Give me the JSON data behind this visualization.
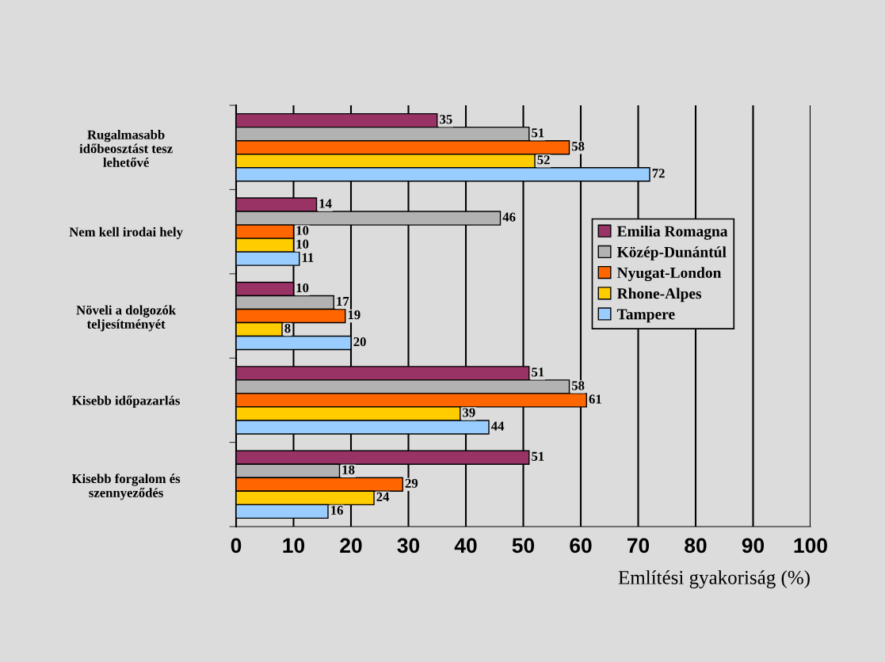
{
  "chart_data": {
    "type": "bar",
    "orientation": "horizontal",
    "xlabel": "Említési gyakoriság (%)",
    "categories": [
      "Rugalmasabb\nidőbeosztást tesz\nlehetővé",
      "Nem kell irodai hely",
      "Növeli a dolgozók\nteljesítményét",
      "Kisebb időpazarlás",
      "Kisebb forgalom és\nszennyeződés"
    ],
    "series": [
      {
        "name": "Emilia Romagna",
        "color": "#993366",
        "values": [
          35,
          14,
          10,
          51,
          51
        ]
      },
      {
        "name": "Közép-Dunántúl",
        "color": "#b2b2b2",
        "values": [
          51,
          46,
          17,
          58,
          18
        ]
      },
      {
        "name": "Nyugat-London",
        "color": "#ff6600",
        "values": [
          58,
          10,
          19,
          61,
          29
        ]
      },
      {
        "name": "Rhone-Alpes",
        "color": "#ffcc00",
        "values": [
          52,
          10,
          8,
          39,
          24
        ]
      },
      {
        "name": "Tampere",
        "color": "#99ccff",
        "values": [
          72,
          11,
          20,
          44,
          16
        ]
      }
    ],
    "xlim": [
      0,
      100
    ],
    "xticks": [
      0,
      10,
      20,
      30,
      40,
      50,
      60,
      70,
      80,
      90,
      100
    ],
    "grid": "x",
    "legend": "right",
    "data_labels": true
  }
}
